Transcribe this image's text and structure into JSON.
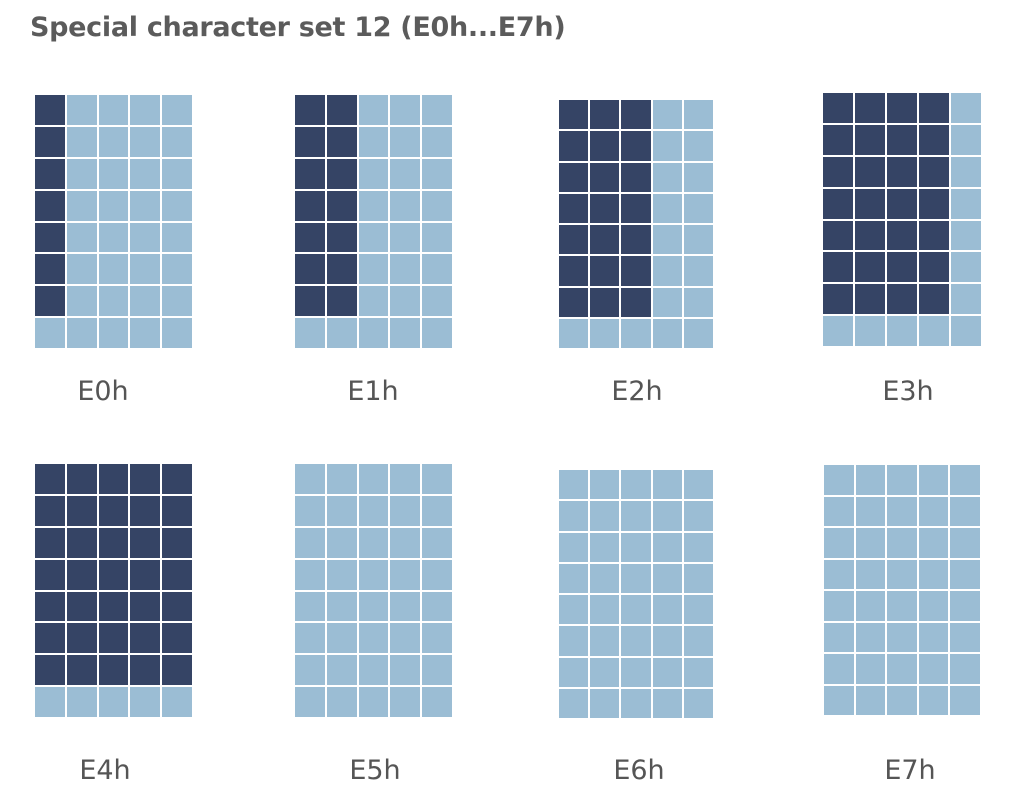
{
  "title": "Special character set 12 (E0h...E7h)",
  "colors": {
    "pixel_on": "#354465",
    "pixel_off": "#9bbdd4",
    "grid_line": "#ffffff",
    "text": "#555555"
  },
  "grid": {
    "columns": 5,
    "rows": 8
  },
  "characters": [
    {
      "label": "E0h",
      "rows": [
        "10000",
        "10000",
        "10000",
        "10000",
        "10000",
        "10000",
        "10000",
        "00000"
      ]
    },
    {
      "label": "E1h",
      "rows": [
        "11000",
        "11000",
        "11000",
        "11000",
        "11000",
        "11000",
        "11000",
        "00000"
      ]
    },
    {
      "label": "E2h",
      "rows": [
        "11100",
        "11100",
        "11100",
        "11100",
        "11100",
        "11100",
        "11100",
        "00000"
      ]
    },
    {
      "label": "E3h",
      "rows": [
        "11110",
        "11110",
        "11110",
        "11110",
        "11110",
        "11110",
        "11110",
        "00000"
      ]
    },
    {
      "label": "E4h",
      "rows": [
        "11111",
        "11111",
        "11111",
        "11111",
        "11111",
        "11111",
        "11111",
        "00000"
      ]
    },
    {
      "label": "E5h",
      "rows": [
        "00000",
        "00000",
        "00000",
        "00000",
        "00000",
        "00000",
        "00000",
        "00000"
      ]
    },
    {
      "label": "E6h",
      "rows": [
        "00000",
        "00000",
        "00000",
        "00000",
        "00000",
        "00000",
        "00000",
        "00000"
      ]
    },
    {
      "label": "E7h",
      "rows": [
        "00000",
        "00000",
        "00000",
        "00000",
        "00000",
        "00000",
        "00000",
        "00000"
      ]
    }
  ]
}
